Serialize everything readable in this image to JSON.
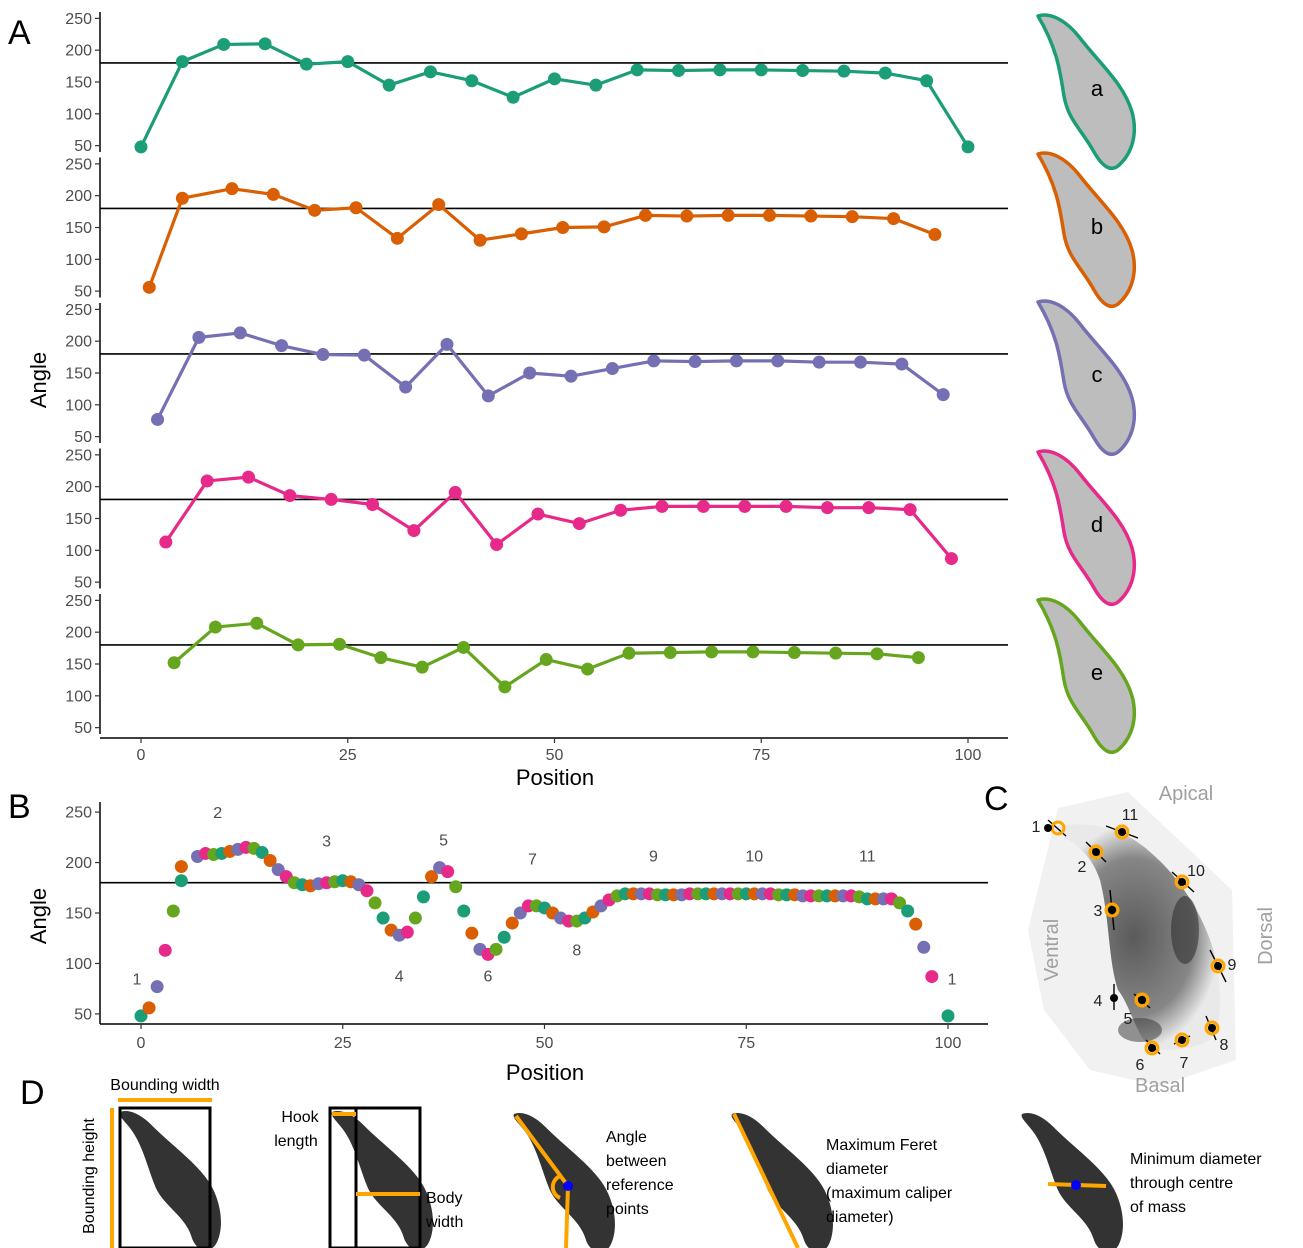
{
  "figure": {
    "panel_letters": [
      "A",
      "B",
      "C",
      "D"
    ]
  },
  "colors": {
    "a": "#1b9e77",
    "b": "#d95f02",
    "c": "#7570b3",
    "d": "#e7298a",
    "e": "#66a61e",
    "shape_fill": "#bdbdbd",
    "highlight": "#ffa500",
    "centre": "#0000ff"
  },
  "chart_data": [
    {
      "type": "line",
      "panel": "A",
      "xlabel": "Position",
      "ylabel": "Angle",
      "xlim": [
        0,
        100
      ],
      "ylim": [
        40,
        260
      ],
      "xticks": [
        0,
        25,
        50,
        75,
        100
      ],
      "yticks": [
        50,
        100,
        150,
        200,
        250
      ],
      "reference_line": 180,
      "series": [
        {
          "name": "a",
          "x": [
            0,
            5,
            10,
            15,
            20,
            25,
            30,
            35,
            40,
            45,
            50,
            55,
            60,
            65,
            70,
            75,
            80,
            85,
            90,
            95,
            100
          ],
          "y": [
            48,
            182,
            209,
            210,
            178,
            182,
            145,
            166,
            152,
            126,
            155,
            145,
            169,
            168,
            169,
            169,
            168,
            167,
            164,
            152,
            48
          ]
        },
        {
          "name": "b",
          "x": [
            1,
            5,
            11,
            16,
            21,
            26,
            31,
            36,
            41,
            46,
            51,
            56,
            61,
            66,
            71,
            76,
            81,
            86,
            91,
            96
          ],
          "y": [
            56,
            196,
            211,
            202,
            177,
            181,
            133,
            186,
            130,
            140,
            150,
            151,
            169,
            168,
            169,
            169,
            168,
            167,
            164,
            139
          ]
        },
        {
          "name": "c",
          "x": [
            2,
            7,
            12,
            17,
            22,
            27,
            32,
            37,
            42,
            47,
            52,
            57,
            62,
            67,
            72,
            77,
            82,
            87,
            92,
            97
          ],
          "y": [
            77,
            206,
            213,
            193,
            179,
            178,
            128,
            195,
            114,
            150,
            145,
            157,
            169,
            168,
            169,
            169,
            167,
            167,
            164,
            116
          ]
        },
        {
          "name": "d",
          "x": [
            3,
            8,
            13,
            18,
            23,
            28,
            33,
            38,
            43,
            48,
            53,
            58,
            63,
            68,
            73,
            78,
            83,
            88,
            93,
            98
          ],
          "y": [
            113,
            209,
            215,
            186,
            180,
            172,
            131,
            191,
            109,
            157,
            142,
            163,
            169,
            169,
            169,
            169,
            167,
            167,
            164,
            87
          ]
        },
        {
          "name": "e",
          "x": [
            4,
            9,
            14,
            19,
            24,
            29,
            34,
            39,
            44,
            49,
            54,
            59,
            64,
            69,
            74,
            79,
            84,
            89,
            94
          ],
          "y": [
            152,
            208,
            214,
            180,
            181,
            160,
            145,
            176,
            114,
            157,
            142,
            167,
            168,
            169,
            169,
            168,
            167,
            166,
            160
          ]
        }
      ]
    },
    {
      "type": "scatter",
      "panel": "B",
      "xlabel": "Position",
      "ylabel": "Angle",
      "xlim": [
        0,
        100
      ],
      "ylim": [
        40,
        260
      ],
      "xticks": [
        0,
        25,
        50,
        75,
        100
      ],
      "yticks": [
        50,
        100,
        150,
        200,
        250
      ],
      "reference_line": 180,
      "annotations": [
        {
          "text": "1",
          "x": -0.5,
          "y": 79
        },
        {
          "text": "2",
          "x": 9.5,
          "y": 244
        },
        {
          "text": "3",
          "x": 23,
          "y": 216
        },
        {
          "text": "4",
          "x": 32,
          "y": 82
        },
        {
          "text": "5",
          "x": 37.5,
          "y": 217
        },
        {
          "text": "6",
          "x": 43,
          "y": 82
        },
        {
          "text": "7",
          "x": 48.5,
          "y": 198
        },
        {
          "text": "8",
          "x": 54,
          "y": 108
        },
        {
          "text": "9",
          "x": 63.5,
          "y": 201
        },
        {
          "text": "10",
          "x": 76,
          "y": 201
        },
        {
          "text": "11",
          "x": 90,
          "y": 201
        },
        {
          "text": "1",
          "x": 100.5,
          "y": 79
        }
      ]
    }
  ],
  "shapes_A": [
    {
      "label": "a"
    },
    {
      "label": "b"
    },
    {
      "label": "c"
    },
    {
      "label": "d"
    },
    {
      "label": "e"
    }
  ],
  "panel_C": {
    "apical": "Apical",
    "basal": "Basal",
    "ventral": "Ventral",
    "dorsal": "Dorsal",
    "point_labels": [
      "1",
      "2",
      "3",
      "4",
      "5",
      "6",
      "7",
      "8",
      "9",
      "10",
      "11"
    ]
  },
  "panel_D": {
    "bounding_width": "Bounding width",
    "bounding_height": "Bounding height",
    "hook_length": [
      "Hook",
      "length"
    ],
    "body_width": [
      "Body",
      "width"
    ],
    "angle": [
      "Angle",
      "between",
      "reference",
      "points"
    ],
    "feret": [
      "Maximum Feret",
      "diameter",
      "(maximum caliper",
      "diameter)"
    ],
    "min_diameter": [
      "Minimum diameter",
      "through centre",
      "of mass"
    ]
  }
}
